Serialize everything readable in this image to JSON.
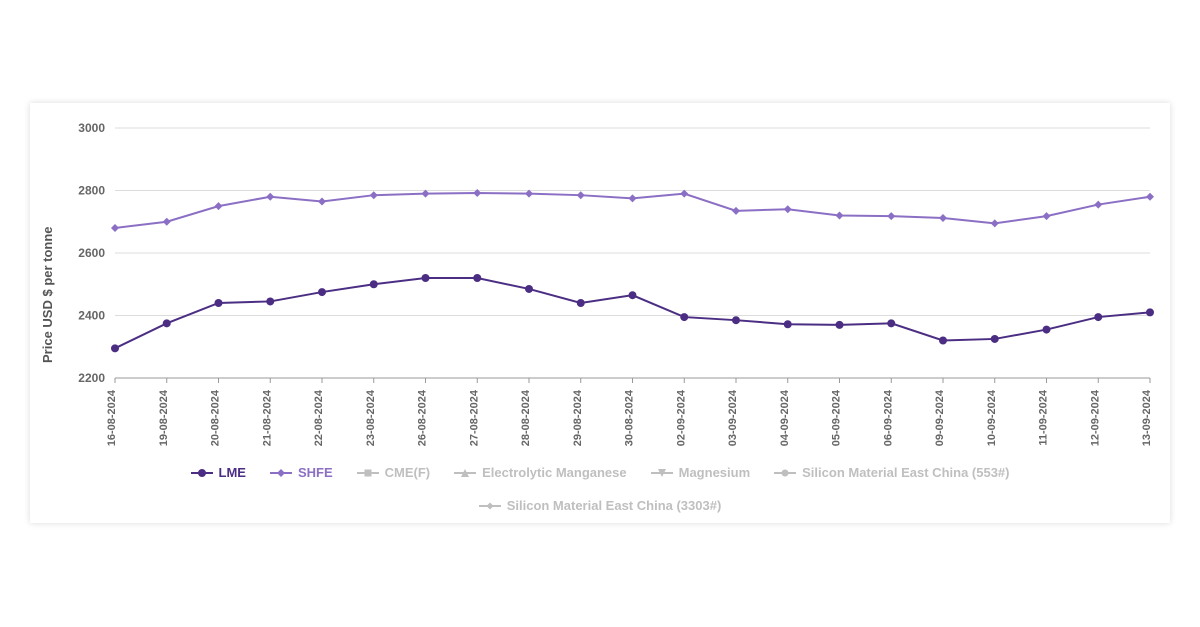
{
  "chart": {
    "type": "line",
    "background_color": "#ffffff",
    "ylabel": "Price USD $ per tonne",
    "ylabel_fontsize": 13,
    "ylim": [
      2200,
      3000
    ],
    "yticks": [
      2200,
      2400,
      2600,
      2800,
      3000
    ],
    "ytick_fontsize": 12,
    "tick_color": "#666666",
    "grid_color": "#dcdcdc",
    "axis_color": "#999999",
    "categories": [
      "16-08-2024",
      "19-08-2024",
      "20-08-2024",
      "21-08-2024",
      "22-08-2024",
      "23-08-2024",
      "26-08-2024",
      "27-08-2024",
      "28-08-2024",
      "29-08-2024",
      "30-08-2024",
      "02-09-2024",
      "03-09-2024",
      "04-09-2024",
      "05-09-2024",
      "06-09-2024",
      "09-09-2024",
      "10-09-2024",
      "11-09-2024",
      "12-09-2024",
      "13-09-2024"
    ],
    "xtick_fontsize": 11,
    "series": [
      {
        "name": "LME",
        "color": "#4b2e83",
        "line_width": 2,
        "marker": "circle",
        "marker_size": 8,
        "active": true,
        "values": [
          2295,
          2375,
          2440,
          2445,
          2475,
          2500,
          2520,
          2520,
          2485,
          2440,
          2465,
          2395,
          2385,
          2372,
          2370,
          2375,
          2320,
          2325,
          2355,
          2395,
          2410
        ]
      },
      {
        "name": "SHFE",
        "color": "#8b6fc4",
        "line_width": 2,
        "marker": "diamond",
        "marker_size": 8,
        "active": true,
        "values": [
          2680,
          2700,
          2750,
          2780,
          2765,
          2785,
          2790,
          2792,
          2790,
          2785,
          2775,
          2790,
          2735,
          2740,
          2720,
          2718,
          2712,
          2695,
          2718,
          2755,
          2780
        ]
      },
      {
        "name": "CME(F)",
        "color": "#bfbfbf",
        "line_width": 2,
        "marker": "square",
        "marker_size": 7,
        "active": false,
        "values": null
      },
      {
        "name": "Electrolytic Manganese",
        "color": "#bfbfbf",
        "line_width": 2,
        "marker": "triangle-up",
        "marker_size": 8,
        "active": false,
        "values": null
      },
      {
        "name": "Magnesium",
        "color": "#bfbfbf",
        "line_width": 2,
        "marker": "triangle-down",
        "marker_size": 8,
        "active": false,
        "values": null
      },
      {
        "name": "Silicon Material East China (553#)",
        "color": "#bfbfbf",
        "line_width": 2,
        "marker": "circle",
        "marker_size": 7,
        "active": false,
        "values": null
      },
      {
        "name": "Silicon Material East China (3303#)",
        "color": "#bfbfbf",
        "line_width": 2,
        "marker": "diamond",
        "marker_size": 7,
        "active": false,
        "values": null
      }
    ]
  }
}
